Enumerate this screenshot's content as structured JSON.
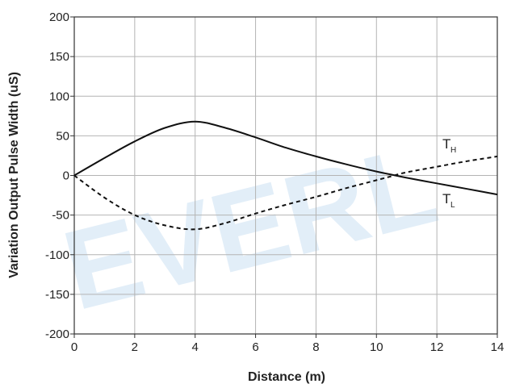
{
  "chart_data": {
    "type": "line",
    "title": "",
    "xlabel": "Distance (m)",
    "ylabel": "Variation Output Pulse Width (uS)",
    "xlim": [
      0,
      14
    ],
    "ylim": [
      -200,
      200
    ],
    "x_ticks": [
      0,
      2,
      4,
      6,
      8,
      10,
      12,
      14
    ],
    "y_ticks": [
      200,
      150,
      100,
      50,
      0,
      -50,
      -100,
      -150,
      -200
    ],
    "x_tick_labels": [
      "0",
      "2",
      "4",
      "6",
      "8",
      "10",
      "12",
      "14"
    ],
    "y_tick_labels": [
      "200",
      "150",
      "100",
      "50",
      "0",
      "-50",
      "-100",
      "-150",
      "-200"
    ],
    "grid": true,
    "series": [
      {
        "name": "T_H",
        "label_main": "T",
        "label_sub": "H",
        "style": "dashed",
        "color": "#111111",
        "x": [
          0,
          1,
          2,
          3,
          4,
          5,
          6,
          7,
          8,
          9,
          10,
          10.5,
          11,
          12,
          13,
          14
        ],
        "y": [
          0,
          -28,
          -50,
          -63,
          -68,
          -60,
          -48,
          -37,
          -27,
          -16,
          -6,
          -1,
          4,
          11,
          18,
          24
        ]
      },
      {
        "name": "T_L",
        "label_main": "T",
        "label_sub": "L",
        "style": "solid",
        "color": "#111111",
        "x": [
          0,
          1,
          2,
          3,
          4,
          5,
          6,
          7,
          8,
          9,
          10,
          10.5,
          11,
          12,
          13,
          14
        ],
        "y": [
          0,
          22,
          43,
          60,
          68,
          60,
          48,
          35,
          24,
          14,
          5,
          1,
          -3,
          -10,
          -17,
          -24
        ]
      }
    ],
    "watermark": "EVERL",
    "colors": {
      "grid": "#b4b4b4",
      "axis": "#333333",
      "watermark": "#cfe3f3"
    }
  }
}
